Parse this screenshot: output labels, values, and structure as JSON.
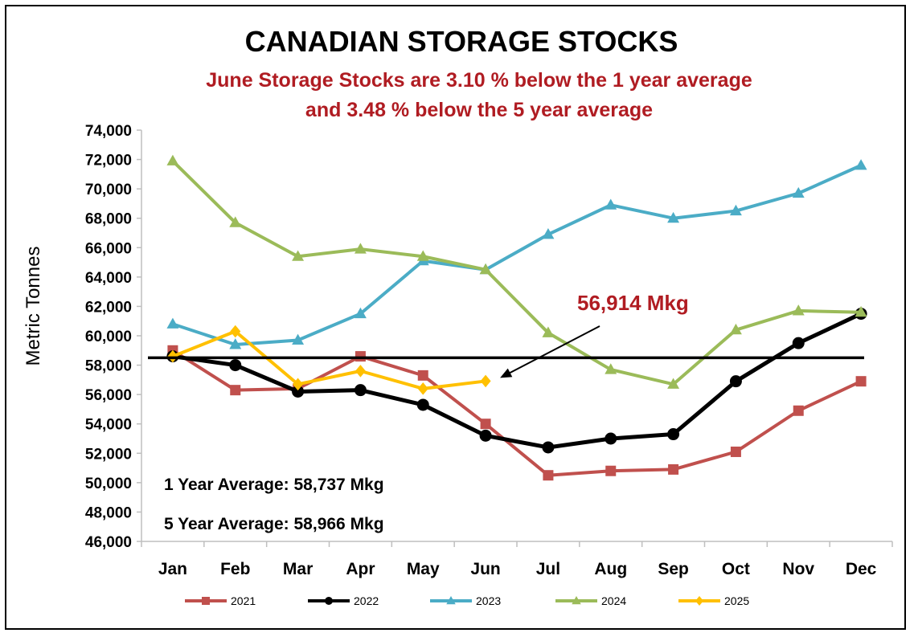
{
  "chart_data": {
    "type": "line",
    "title": "CANADIAN STORAGE STOCKS",
    "subtitle_lines": [
      "June Storage Stocks are 3.10 % below the 1 year average",
      "and 3.48 % below the 5 year average"
    ],
    "ylabel": "Metric Tonnes",
    "xlabel": "",
    "categories": [
      "Jan",
      "Feb",
      "Mar",
      "Apr",
      "May",
      "Jun",
      "Jul",
      "Aug",
      "Sep",
      "Oct",
      "Nov",
      "Dec"
    ],
    "ylim": [
      46000,
      74000
    ],
    "ytick_step": 2000,
    "grid": false,
    "legend_position": "bottom",
    "series": [
      {
        "name": "2021",
        "color": "#c0504d",
        "marker": "square",
        "width": 4,
        "values": [
          59000,
          56300,
          56400,
          58600,
          57300,
          54000,
          50500,
          50800,
          50900,
          52100,
          54900,
          56900
        ]
      },
      {
        "name": "2022",
        "color": "#000000",
        "marker": "circle",
        "width": 5,
        "values": [
          58600,
          58000,
          56200,
          56300,
          55300,
          53200,
          52400,
          53000,
          53300,
          56900,
          59500,
          61500
        ]
      },
      {
        "name": "2023",
        "color": "#4bacc6",
        "marker": "triangle",
        "width": 4,
        "values": [
          60800,
          59400,
          59700,
          61500,
          65100,
          64500,
          66900,
          68900,
          68000,
          68500,
          69700,
          71600
        ]
      },
      {
        "name": "2024",
        "color": "#9bbb59",
        "marker": "triangle",
        "width": 4,
        "values": [
          71900,
          67700,
          65400,
          65900,
          65400,
          64500,
          60200,
          57700,
          56700,
          60400,
          61700,
          61600
        ]
      },
      {
        "name": "2025",
        "color": "#ffc000",
        "marker": "diamond",
        "width": 4,
        "values": [
          58600,
          60300,
          56700,
          57600,
          56400,
          56914,
          null,
          null,
          null,
          null,
          null,
          null
        ]
      }
    ],
    "reference_line": {
      "value": 58500,
      "color": "#000000"
    },
    "annotations": {
      "callout": "56,914 Mkg",
      "one_year_average": "1 Year Average: 58,737 Mkg",
      "five_year_average": "5 Year Average: 58,966 Mkg"
    }
  }
}
